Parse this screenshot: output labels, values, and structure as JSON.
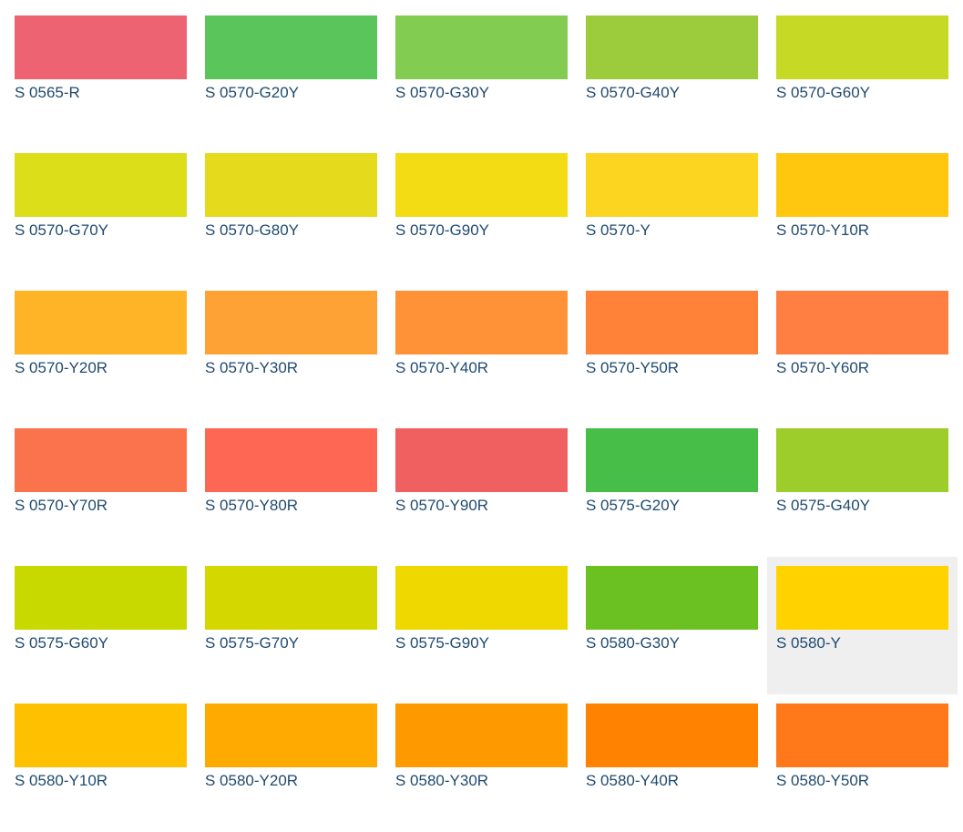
{
  "hovered_index": 24,
  "swatches": [
    {
      "label": "S 0565-R",
      "color": "#ee6371"
    },
    {
      "label": "S 0570-G20Y",
      "color": "#5ac55a"
    },
    {
      "label": "S 0570-G30Y",
      "color": "#83cc52"
    },
    {
      "label": "S 0570-G40Y",
      "color": "#9ccc3b"
    },
    {
      "label": "S 0570-G60Y",
      "color": "#c6d924"
    },
    {
      "label": "S 0570-G70Y",
      "color": "#dbde19"
    },
    {
      "label": "S 0570-G80Y",
      "color": "#e5da1c"
    },
    {
      "label": "S 0570-G90Y",
      "color": "#f4dc14"
    },
    {
      "label": "S 0570-Y",
      "color": "#fbd520"
    },
    {
      "label": "S 0570-Y10R",
      "color": "#ffc80f"
    },
    {
      "label": "S 0570-Y20R",
      "color": "#ffb327"
    },
    {
      "label": "S 0570-Y30R",
      "color": "#ffa236"
    },
    {
      "label": "S 0570-Y40R",
      "color": "#ff9136"
    },
    {
      "label": "S 0570-Y50R",
      "color": "#ff8238"
    },
    {
      "label": "S 0570-Y60R",
      "color": "#ff7f43"
    },
    {
      "label": "S 0570-Y70R",
      "color": "#fa734d"
    },
    {
      "label": "S 0570-Y80R",
      "color": "#fe6753"
    },
    {
      "label": "S 0570-Y90R",
      "color": "#f06060"
    },
    {
      "label": "S 0575-G20Y",
      "color": "#46be48"
    },
    {
      "label": "S 0575-G40Y",
      "color": "#9ccd2a"
    },
    {
      "label": "S 0575-G60Y",
      "color": "#c8d900"
    },
    {
      "label": "S 0575-G70Y",
      "color": "#d4d800"
    },
    {
      "label": "S 0575-G90Y",
      "color": "#efd700"
    },
    {
      "label": "S 0580-G30Y",
      "color": "#6cc122"
    },
    {
      "label": "S 0580-Y",
      "color": "#ffd200"
    },
    {
      "label": "S 0580-Y10R",
      "color": "#ffc000"
    },
    {
      "label": "S 0580-Y20R",
      "color": "#ffaa00"
    },
    {
      "label": "S 0580-Y30R",
      "color": "#ff9900"
    },
    {
      "label": "S 0580-Y40R",
      "color": "#ff8300"
    },
    {
      "label": "S 0580-Y50R",
      "color": "#ff7819"
    }
  ]
}
